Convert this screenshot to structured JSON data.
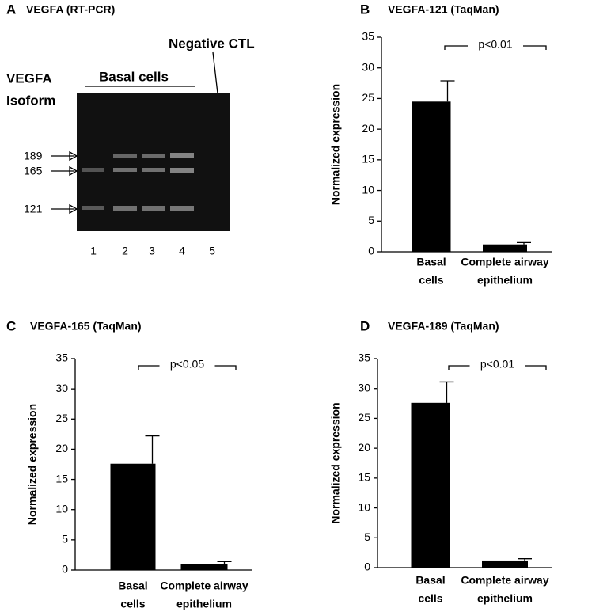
{
  "gel": {
    "panel": "A",
    "title": "VEGFA (RT-PCR)",
    "negative_label": "Negative CTL",
    "group_label": "Basal cells",
    "axis_label": [
      "VEGFA",
      "Isoform"
    ],
    "markers": [
      "189",
      "165",
      "121"
    ],
    "lanes": [
      "1",
      "2",
      "3",
      "4",
      "5"
    ]
  },
  "chart_data": [
    {
      "type": "bar",
      "panel": "B",
      "title": "VEGFA-121 (TaqMan)",
      "y_label": "Normalized expression",
      "categories": [
        [
          "Basal",
          "cells"
        ],
        [
          "Complete airway",
          "epithelium"
        ]
      ],
      "values": [
        24.5,
        1.2
      ],
      "errors": [
        3.4,
        0.3
      ],
      "color": "#000000",
      "ylim": [
        0,
        35
      ],
      "yticks": [
        0,
        5,
        10,
        15,
        20,
        25,
        30,
        35
      ],
      "annotation": "p<0.01"
    },
    {
      "type": "bar",
      "panel": "C",
      "title": "VEGFA-165 (TaqMan)",
      "y_label": "Normalized expression",
      "categories": [
        [
          "Basal",
          "cells"
        ],
        [
          "Complete airway",
          "epithelium"
        ]
      ],
      "values": [
        17.6,
        1.0
      ],
      "errors": [
        4.6,
        0.4
      ],
      "color": "#000000",
      "ylim": [
        0,
        35
      ],
      "yticks": [
        0,
        5,
        10,
        15,
        20,
        25,
        30,
        35
      ],
      "annotation": "p<0.05"
    },
    {
      "type": "bar",
      "panel": "D",
      "title": "VEGFA-189 (TaqMan)",
      "y_label": "Normalized expression",
      "categories": [
        [
          "Basal",
          "cells"
        ],
        [
          "Complete airway",
          "epithelium"
        ]
      ],
      "values": [
        27.6,
        1.2
      ],
      "errors": [
        3.5,
        0.3
      ],
      "color": "#000000",
      "ylim": [
        0,
        35
      ],
      "yticks": [
        0,
        5,
        10,
        15,
        20,
        25,
        30,
        35
      ],
      "annotation": "p<0.01"
    }
  ]
}
